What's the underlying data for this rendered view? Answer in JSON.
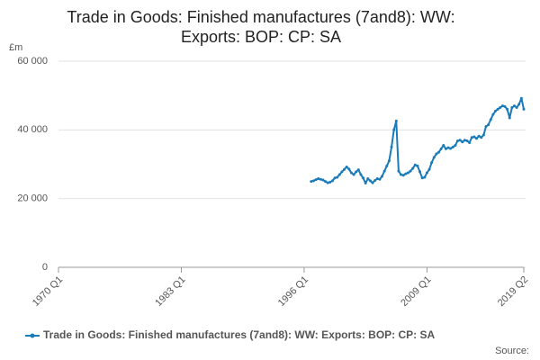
{
  "chart_data": {
    "type": "line",
    "title": "Trade in Goods: Finished manufactures (7and8): WW: Exports: BOP: CP: SA",
    "y_label": "£m",
    "source": "Source:",
    "categories": [
      "1970 Q1",
      null,
      null,
      null,
      null,
      null,
      null,
      null,
      null,
      null,
      null,
      null,
      null,
      null,
      null,
      null,
      null,
      null,
      null,
      null,
      null,
      null,
      null,
      null,
      null,
      null,
      null,
      null,
      null,
      null,
      null,
      null,
      null,
      null,
      null,
      null,
      null,
      null,
      null,
      null,
      null,
      null,
      null,
      null,
      null,
      null,
      null,
      null,
      null,
      null,
      null,
      null,
      "1983 Q1",
      null,
      null,
      null,
      null,
      null,
      null,
      null,
      null,
      null,
      null,
      null,
      null,
      null,
      null,
      null,
      null,
      null,
      null,
      null,
      null,
      null,
      null,
      null,
      null,
      null,
      null,
      null,
      null,
      null,
      null,
      null,
      null,
      null,
      null,
      null,
      null,
      null,
      null,
      null,
      null,
      null,
      null,
      null,
      null,
      null,
      null,
      null,
      null,
      null,
      null,
      null,
      "1996 Q1",
      null,
      null,
      null,
      null,
      null,
      null,
      null,
      null,
      null,
      null,
      null,
      null,
      null,
      null,
      null,
      null,
      null,
      null,
      null,
      null,
      null,
      null,
      null,
      null,
      null,
      null,
      null,
      null,
      null,
      null,
      null,
      null,
      null,
      null,
      null,
      null,
      null,
      null,
      null,
      null,
      null,
      null,
      null,
      null,
      null,
      null,
      null,
      null,
      null,
      null,
      null,
      "2009 Q1",
      null,
      null,
      null,
      null,
      null,
      null,
      null,
      null,
      null,
      null,
      null,
      null,
      null,
      null,
      null,
      null,
      null,
      null,
      null,
      null,
      null,
      null,
      null,
      null,
      null,
      null,
      null,
      null,
      null,
      null,
      null,
      null,
      null,
      null,
      null,
      null,
      null,
      null,
      null,
      null,
      "2019 Q2"
    ],
    "series": [
      {
        "name": "Trade in Goods: Finished manufactures (7and8): WW: Exports: BOP: CP: SA",
        "color": "#1a7bb8",
        "values": [
          null,
          null,
          null,
          null,
          null,
          null,
          null,
          null,
          null,
          null,
          null,
          null,
          null,
          null,
          null,
          null,
          null,
          null,
          null,
          null,
          null,
          null,
          null,
          null,
          null,
          null,
          null,
          null,
          null,
          null,
          null,
          null,
          null,
          null,
          null,
          null,
          null,
          null,
          null,
          null,
          null,
          null,
          null,
          null,
          null,
          null,
          null,
          null,
          null,
          null,
          null,
          null,
          null,
          null,
          null,
          null,
          null,
          null,
          null,
          null,
          null,
          null,
          null,
          null,
          null,
          null,
          null,
          null,
          null,
          null,
          null,
          null,
          null,
          null,
          null,
          null,
          null,
          null,
          null,
          null,
          null,
          null,
          null,
          null,
          null,
          null,
          null,
          null,
          null,
          null,
          null,
          null,
          null,
          null,
          null,
          null,
          null,
          null,
          null,
          null,
          null,
          null,
          null,
          null,
          null,
          null,
          null,
          25000,
          25200,
          25500,
          25800,
          25600,
          25400,
          25000,
          24600,
          24800,
          25200,
          26000,
          26200,
          27000,
          27800,
          28500,
          29200,
          28600,
          27500,
          27000,
          27800,
          28400,
          27000,
          26000,
          24500,
          25800,
          25200,
          24600,
          25300,
          25800,
          25600,
          26500,
          28000,
          29500,
          31000,
          35000,
          40000,
          42600,
          28000,
          27000,
          26800,
          27200,
          27500,
          28000,
          28800,
          29800,
          29500,
          27800,
          26000,
          26200,
          27500,
          28500,
          30500,
          32000,
          33000,
          33500,
          34500,
          35500,
          34500,
          34800,
          34600,
          35000,
          35500,
          36800,
          37000,
          36500,
          37000,
          36800,
          36300,
          37800,
          38000,
          37500,
          38200,
          37800,
          38500,
          41000,
          41500,
          43000,
          44500,
          45500,
          46000,
          46500,
          47000,
          46800,
          46000,
          43500,
          46500,
          47000,
          46500,
          47500,
          49200,
          46000
        ]
      }
    ],
    "ylim": [
      0,
      60000
    ],
    "yticks": [
      0,
      {
        "value": 20000,
        "label": "20 000"
      },
      {
        "value": 40000,
        "label": "40 000"
      },
      {
        "value": 60000,
        "label": "60 000"
      }
    ],
    "grid": true
  }
}
